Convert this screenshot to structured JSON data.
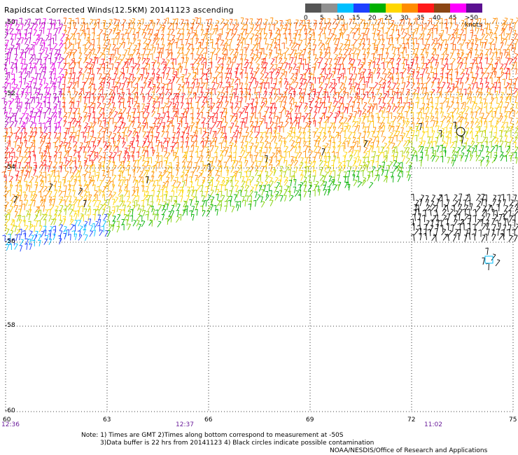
{
  "title": "Rapidscat Corrected Winds(12.5KM) 20141123 ascending",
  "legend": {
    "labels": [
      "0",
      "5",
      "10",
      "15",
      "20",
      "25",
      "30",
      "35",
      "40",
      "45",
      ">50 knots"
    ],
    "colors": [
      "#555555",
      "#909090",
      "#00bfff",
      "#1e40ff",
      "#00b000",
      "#ffd700",
      "#ff8c00",
      "#ff1a1a",
      "#8b4513",
      "#ff00ff",
      "#5b1090"
    ]
  },
  "map": {
    "lat_labels": [
      "-50",
      "-52",
      "-54",
      "-56",
      "-58",
      "-60"
    ],
    "lon_labels": [
      "60",
      "63",
      "66",
      "69",
      "72",
      "75"
    ],
    "time_labels": [
      "12:36",
      "12:37",
      "11:02"
    ]
  },
  "notes": {
    "line1": "Note: 1) Times are GMT 2)Times along bottom correspond to measurement at -50S",
    "line2": "3)Data buffer is 22 hrs from 20141123 4) Black circles indicate possible contamination"
  },
  "credit": "NOAA/NESDIS/Office of Research and Applications"
}
